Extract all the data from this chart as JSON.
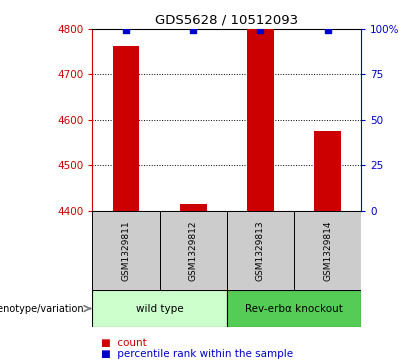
{
  "title": "GDS5628 / 10512093",
  "samples": [
    "GSM1329811",
    "GSM1329812",
    "GSM1329813",
    "GSM1329814"
  ],
  "count_values": [
    4762,
    4415,
    4800,
    4575
  ],
  "percentile_values": [
    99.5,
    99.5,
    99.5,
    99.5
  ],
  "ylim_left": [
    4400,
    4800
  ],
  "ylim_right": [
    0,
    100
  ],
  "yticks_left": [
    4400,
    4500,
    4600,
    4700,
    4800
  ],
  "yticks_right": [
    0,
    25,
    50,
    75,
    100
  ],
  "ytick_labels_right": [
    "0",
    "25",
    "50",
    "75",
    "100%"
  ],
  "bar_color": "#cc0000",
  "dot_color": "#0000cc",
  "bar_width": 0.4,
  "groups": [
    {
      "label": "wild type",
      "indices": [
        0,
        1
      ],
      "color": "#ccffcc"
    },
    {
      "label": "Rev-erbα knockout",
      "indices": [
        2,
        3
      ],
      "color": "#55cc55"
    }
  ],
  "sample_cell_color": "#cccccc",
  "xlabel_label": "genotype/variation",
  "background_color": "#ffffff"
}
